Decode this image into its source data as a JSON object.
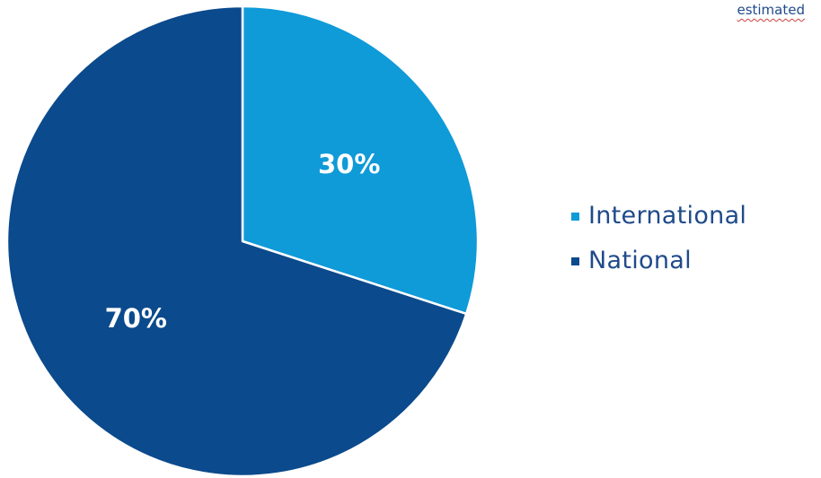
{
  "chart_data": {
    "type": "pie",
    "categories": [
      "International",
      "National"
    ],
    "values": [
      30,
      70
    ],
    "labels": [
      "30%",
      "70%"
    ],
    "colors": [
      "#0f9ad8",
      "#0b4a8c"
    ],
    "legend_position": "right",
    "start_angle_deg": 0,
    "direction": "clockwise"
  },
  "note": {
    "word": "estimated"
  }
}
